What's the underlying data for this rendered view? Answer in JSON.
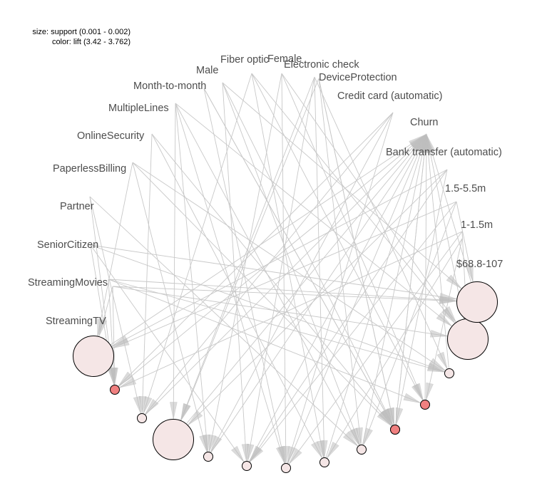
{
  "legend": {
    "size_text": "size: support (0.001 - 0.002)",
    "color_text": "color: lift (3.42 - 3.762)"
  },
  "colors": {
    "edge": "#c8c8c8",
    "arrow": "#bdbdbd",
    "rule_low_lift": "#f5e6e6",
    "rule_mid_lift": "#f0dcdc",
    "rule_high_lift": "#f08080",
    "label": "#4d4d4d"
  },
  "items": [
    {
      "id": "fiber",
      "label": "Fiber optic"
    },
    {
      "id": "female",
      "label": "Female"
    },
    {
      "id": "echeck",
      "label": "Electronic check"
    },
    {
      "id": "devprot",
      "label": "DeviceProtection"
    },
    {
      "id": "ccard",
      "label": "Credit card (automatic)"
    },
    {
      "id": "churn",
      "label": "Churn"
    },
    {
      "id": "bank",
      "label": "Bank transfer (automatic)"
    },
    {
      "id": "t155",
      "label": "1.5-5.5m"
    },
    {
      "id": "t115",
      "label": "1-1.5m"
    },
    {
      "id": "c688",
      "label": "$68.8-107"
    },
    {
      "id": "male",
      "label": "Male"
    },
    {
      "id": "m2m",
      "label": "Month-to-month"
    },
    {
      "id": "multi",
      "label": "MultipleLines"
    },
    {
      "id": "onsec",
      "label": "OnlineSecurity"
    },
    {
      "id": "paper",
      "label": "PaperlessBilling"
    },
    {
      "id": "partner",
      "label": "Partner"
    },
    {
      "id": "senior",
      "label": "SeniorCitizen"
    },
    {
      "id": "smovies",
      "label": "StreamingMovies"
    },
    {
      "id": "stv",
      "label": "StreamingTV"
    }
  ],
  "rules": [
    {
      "id": "r1",
      "lift": 3.762,
      "support": 0.001
    },
    {
      "id": "r2",
      "lift": 3.47,
      "support": 0.002
    },
    {
      "id": "r3",
      "lift": 3.47,
      "support": 0.002
    },
    {
      "id": "r4",
      "lift": 3.42,
      "support": 0.001
    },
    {
      "id": "r5",
      "lift": 3.762,
      "support": 0.001
    },
    {
      "id": "r6",
      "lift": 3.762,
      "support": 0.001
    },
    {
      "id": "r7",
      "lift": 3.42,
      "support": 0.001
    },
    {
      "id": "r8",
      "lift": 3.42,
      "support": 0.001
    },
    {
      "id": "r9",
      "lift": 3.42,
      "support": 0.001
    },
    {
      "id": "r10",
      "lift": 3.42,
      "support": 0.001
    },
    {
      "id": "r11",
      "lift": 3.42,
      "support": 0.001
    },
    {
      "id": "r12",
      "lift": 3.47,
      "support": 0.002
    },
    {
      "id": "r13",
      "lift": 3.42,
      "support": 0.001
    },
    {
      "id": "r14",
      "lift": 3.762,
      "support": 0.001
    },
    {
      "id": "r15",
      "lift": 3.47,
      "support": 0.002
    }
  ]
}
